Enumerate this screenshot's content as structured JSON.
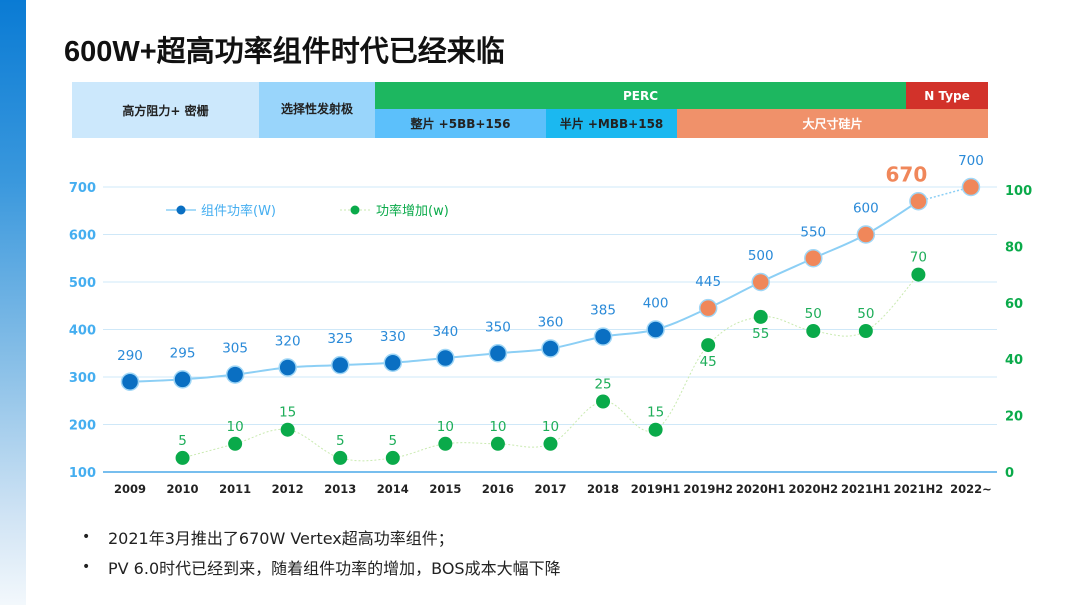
{
  "page": {
    "title": "600W+超高功率组件时代已经来临",
    "accent_color": "#0a7bd4"
  },
  "tech_bands": {
    "top_row": [
      {
        "label": "高方阻力+ 密栅",
        "color": "#cce8fc"
      },
      {
        "label": "选择性发射极",
        "color": "#99d5fb"
      },
      {
        "label": "PERC",
        "color": "#1db760"
      },
      {
        "label": "N Type",
        "color": "#d2322a"
      }
    ],
    "bottom_row": [
      {
        "label": "整片 +5BB+156",
        "color": "#5cc0fb"
      },
      {
        "label": "半片 +MBB+158",
        "color": "#1bb8f0"
      },
      {
        "label": "大尺寸硅片",
        "color": "#f0916a"
      }
    ]
  },
  "bullets": [
    "2021年3月推出了670W Vertex超高功率组件；",
    "PV 6.0时代已经到来，随着组件功率的增加，BOS成本大幅下降"
  ],
  "chart_data": {
    "type": "line",
    "title": "",
    "categories": [
      "2009",
      "2010",
      "2011",
      "2012",
      "2013",
      "2014",
      "2015",
      "2016",
      "2017",
      "2018",
      "2019H1",
      "2019H2",
      "2020H1",
      "2020H2",
      "2021H1",
      "2021H2",
      "2022~"
    ],
    "series": [
      {
        "name": "组件功率(W)",
        "axis": "left",
        "color": "#0a6fc2",
        "highlight_color": "#f0875a",
        "line_color": "#8ccff5",
        "values": [
          290,
          295,
          305,
          320,
          325,
          330,
          340,
          350,
          360,
          385,
          400,
          445,
          500,
          550,
          600,
          670,
          700
        ],
        "labels": [
          "290",
          "295",
          "305",
          "320",
          "325",
          "330",
          "340",
          "350",
          "360",
          "385",
          "400",
          "445",
          "500",
          "550",
          "600",
          "670",
          "700"
        ],
        "highlighted_from_index": 11,
        "emphasized_label_index": 15
      },
      {
        "name": "功率增加(w)",
        "axis": "right",
        "color": "#0aaa4a",
        "line_color": "#c9eab0",
        "values": [
          null,
          5,
          10,
          15,
          5,
          5,
          10,
          10,
          10,
          25,
          15,
          45,
          55,
          50,
          50,
          70,
          null
        ],
        "labels": [
          null,
          "5",
          "10",
          "15",
          "5",
          "5",
          "10",
          "10",
          "10",
          "25",
          "15",
          "45",
          "55",
          "50",
          "50",
          "70",
          null
        ]
      }
    ],
    "y_left": {
      "ylim": [
        100,
        700
      ],
      "ticks": [
        100,
        200,
        300,
        400,
        500,
        600,
        700
      ],
      "color": "#45aef0"
    },
    "y_right": {
      "ylim": [
        0,
        100
      ],
      "ticks": [
        0,
        20,
        40,
        60,
        80,
        100
      ],
      "color": "#0aaa4a"
    },
    "xlabel": "",
    "ylabel": "",
    "grid": true,
    "legend_position": "top-left"
  }
}
